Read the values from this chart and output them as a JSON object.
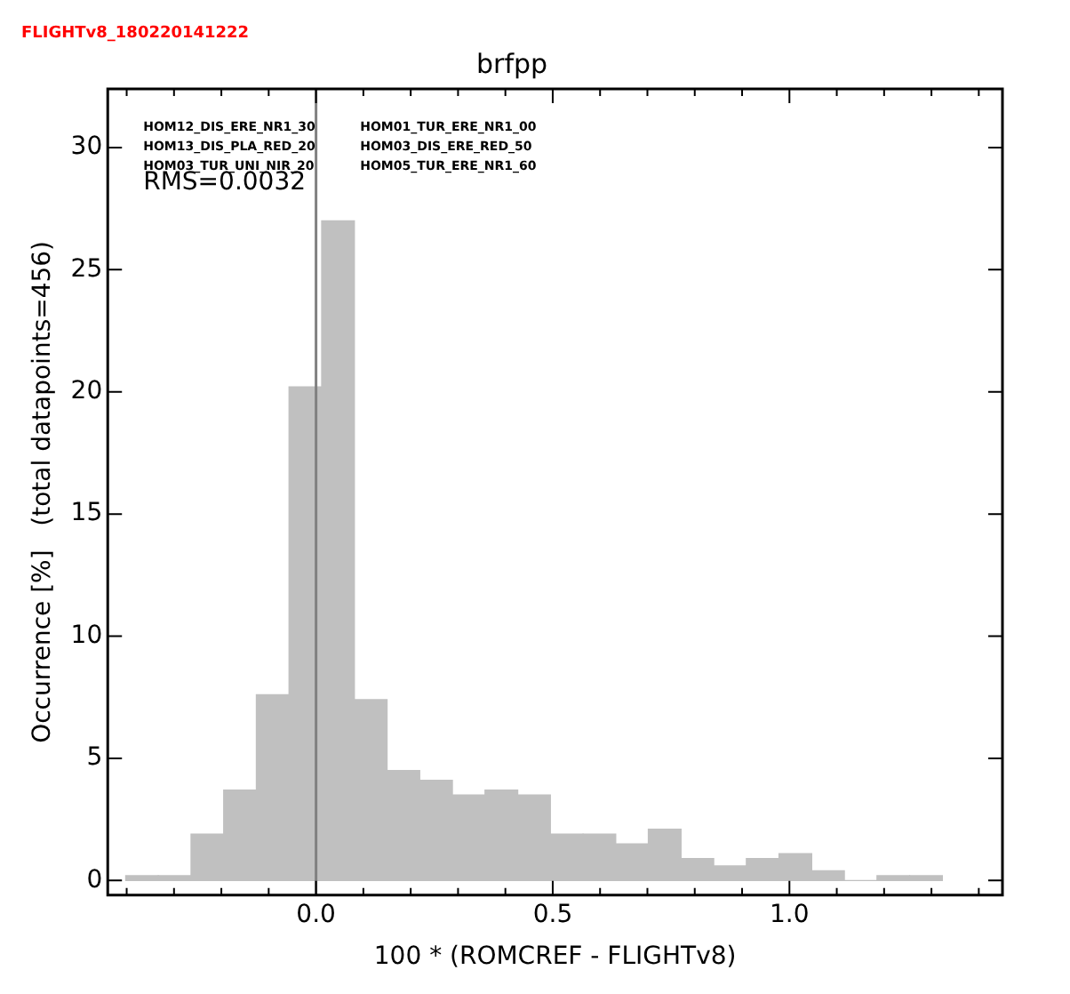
{
  "chart_data": {
    "type": "histogram",
    "title": "brfpp",
    "xlabel": "100 * (ROMCREF - FLIGHTv8)",
    "ylabel": "Occurrence [%]   (total datapoints=456)",
    "bins": [
      -0.402,
      -0.333,
      -0.264,
      -0.195,
      -0.126,
      -0.057,
      0.012,
      0.081,
      0.15,
      0.219,
      0.288,
      0.357,
      0.426,
      0.495,
      0.564,
      0.633,
      0.702,
      0.771,
      0.84,
      0.909,
      0.978,
      1.047,
      1.116,
      1.185,
      1.254,
      1.323
    ],
    "values": [
      0.2,
      0.2,
      1.9,
      3.7,
      7.6,
      20.2,
      27.0,
      7.4,
      4.5,
      4.1,
      3.5,
      3.7,
      3.5,
      1.9,
      1.9,
      1.5,
      2.1,
      0.9,
      0.6,
      0.9,
      1.1,
      0.4,
      0,
      0.2,
      0.2
    ],
    "color": "#c0c0c0",
    "xlim": [
      -0.44,
      1.45
    ],
    "xticks": [
      {
        "value": -0.4,
        "label": null
      },
      {
        "value": -0.3,
        "label": null
      },
      {
        "value": -0.2,
        "label": null
      },
      {
        "value": -0.1,
        "label": null
      },
      {
        "value": 0,
        "label": "0.0"
      },
      {
        "value": 0.1,
        "label": null
      },
      {
        "value": 0.2,
        "label": null
      },
      {
        "value": 0.3,
        "label": null
      },
      {
        "value": 0.4,
        "label": null
      },
      {
        "value": 0.5,
        "label": "0.5"
      },
      {
        "value": 0.6,
        "label": null
      },
      {
        "value": 0.7,
        "label": null
      },
      {
        "value": 0.8,
        "label": null
      },
      {
        "value": 0.9,
        "label": null
      },
      {
        "value": 1.0,
        "label": "1.0"
      },
      {
        "value": 1.1,
        "label": null
      },
      {
        "value": 1.2,
        "label": null
      },
      {
        "value": 1.3,
        "label": null
      },
      {
        "value": 1.4,
        "label": null
      }
    ],
    "ylim": [
      -0.6,
      32.4
    ],
    "yticks": [
      0,
      5,
      10,
      15,
      20,
      25,
      30
    ],
    "ref_lines": [
      {
        "axis": "x",
        "value": 0,
        "color": "#808080"
      }
    ],
    "annotations": [
      "FLIGHTv8_180220141222",
      "HOM12_DIS_ERE_NR1_30",
      "HOM13_DIS_PLA_RED_20",
      "HOM03_TUR_UNI_NIR_20",
      "HOM01_TUR_ERE_NR1_00",
      "HOM03_DIS_ERE_RED_50",
      "HOM05_TUR_ERE_NR1_60",
      "RMS=0.0032"
    ],
    "grid": false
  }
}
